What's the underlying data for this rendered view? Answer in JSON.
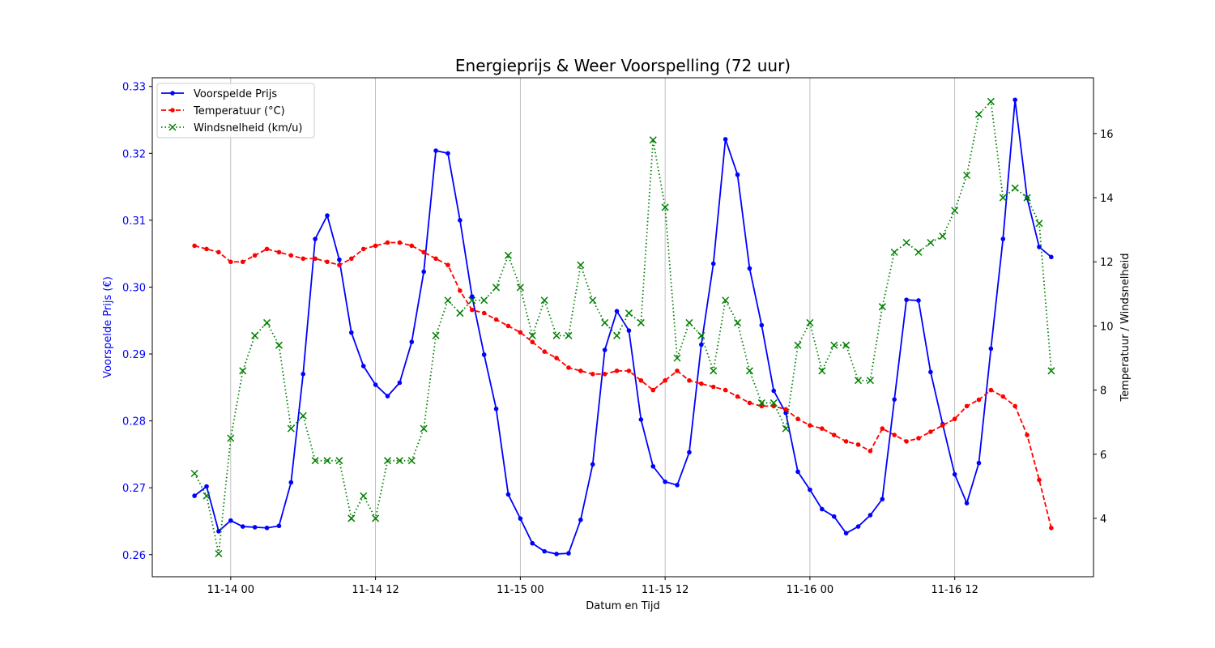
{
  "chart_data": {
    "type": "line",
    "title": "Energieprijs & Weer Voorspelling (72 uur)",
    "xlabel": "Datum en Tijd",
    "ylabel_left": "Voorspelde Prijs (€)",
    "ylabel_right": "Temperatuur / Windsnelheid",
    "x_unit": "hours relative to 11-14 00:00",
    "x": [
      -3,
      -2,
      -1,
      0,
      1,
      2,
      3,
      4,
      5,
      6,
      7,
      8,
      9,
      10,
      11,
      12,
      13,
      14,
      15,
      16,
      17,
      18,
      19,
      20,
      21,
      22,
      23,
      24,
      25,
      26,
      27,
      28,
      29,
      30,
      31,
      32,
      33,
      34,
      35,
      36,
      37,
      38,
      39,
      40,
      41,
      42,
      43,
      44,
      45,
      46,
      47,
      48,
      49,
      50,
      51,
      52,
      53,
      54,
      55,
      56,
      57,
      58,
      59,
      60,
      61,
      62,
      63,
      64,
      65,
      66,
      67,
      68
    ],
    "xlim": [
      -6.5,
      71.5
    ],
    "x_ticks": [
      {
        "value": 0,
        "label": "11-14 00"
      },
      {
        "value": 12,
        "label": "11-14 12"
      },
      {
        "value": 24,
        "label": "11-15 00"
      },
      {
        "value": 36,
        "label": "11-15 12"
      },
      {
        "value": 48,
        "label": "11-16 00"
      },
      {
        "value": 60,
        "label": "11-16 12"
      }
    ],
    "ylim_left": [
      0.2567,
      0.3313
    ],
    "y_ticks_left": [
      {
        "value": 0.26,
        "label": "0.26"
      },
      {
        "value": 0.27,
        "label": "0.27"
      },
      {
        "value": 0.28,
        "label": "0.28"
      },
      {
        "value": 0.29,
        "label": "0.29"
      },
      {
        "value": 0.3,
        "label": "0.30"
      },
      {
        "value": 0.31,
        "label": "0.31"
      },
      {
        "value": 0.32,
        "label": "0.32"
      },
      {
        "value": 0.33,
        "label": "0.33"
      }
    ],
    "ylim_right": [
      2.18,
      17.74
    ],
    "y_ticks_right": [
      {
        "value": 4,
        "label": "4"
      },
      {
        "value": 6,
        "label": "6"
      },
      {
        "value": 8,
        "label": "8"
      },
      {
        "value": 10,
        "label": "10"
      },
      {
        "value": 12,
        "label": "12"
      },
      {
        "value": 14,
        "label": "14"
      },
      {
        "value": 16,
        "label": "16"
      }
    ],
    "grid": "x-only",
    "legend_position": "top-left",
    "series": [
      {
        "name": "Voorspelde Prijs",
        "axis": "left",
        "color": "#0000ff",
        "style": "solid",
        "marker": "dot",
        "values": [
          0.2688,
          0.2702,
          0.2635,
          0.2651,
          0.2642,
          0.2641,
          0.264,
          0.2643,
          0.2708,
          0.287,
          0.3072,
          0.3107,
          0.3041,
          0.2932,
          0.2882,
          0.2854,
          0.2837,
          0.2857,
          0.2918,
          0.3023,
          0.3204,
          0.32,
          0.31,
          0.2986,
          0.2899,
          0.2818,
          0.269,
          0.2654,
          0.2617,
          0.2605,
          0.2601,
          0.2602,
          0.2652,
          0.2735,
          0.2906,
          0.2964,
          0.2935,
          0.2802,
          0.2732,
          0.2709,
          0.2704,
          0.2753,
          0.2914,
          0.3035,
          0.3221,
          0.3168,
          0.3028,
          0.2943,
          0.2845,
          0.2812,
          0.2724,
          0.2697,
          0.2668,
          0.2657,
          0.2632,
          0.2642,
          0.2659,
          0.2683,
          0.2832,
          0.2981,
          0.298,
          0.2873,
          0.2795,
          0.272,
          0.2677,
          0.2737,
          0.2908,
          0.3072,
          0.328,
          0.3133,
          0.306,
          0.3045
        ]
      },
      {
        "name": "Temperatuur (°C)",
        "axis": "right",
        "color": "#ff0000",
        "style": "dashed",
        "marker": "dot",
        "values": [
          12.5,
          12.4,
          12.3,
          12.0,
          12.0,
          12.2,
          12.4,
          12.3,
          12.2,
          12.1,
          12.1,
          12.0,
          11.9,
          12.1,
          12.4,
          12.5,
          12.6,
          12.6,
          12.5,
          12.3,
          12.1,
          11.9,
          11.1,
          10.5,
          10.4,
          10.2,
          10.0,
          9.8,
          9.5,
          9.2,
          9.0,
          8.7,
          8.6,
          8.5,
          8.5,
          8.6,
          8.6,
          8.3,
          8.0,
          8.3,
          8.6,
          8.3,
          8.2,
          8.1,
          8.0,
          7.8,
          7.6,
          7.5,
          7.5,
          7.4,
          7.1,
          6.9,
          6.8,
          6.6,
          6.4,
          6.3,
          6.1,
          6.8,
          6.6,
          6.4,
          6.5,
          6.7,
          6.9,
          7.1,
          7.5,
          7.7,
          8.0,
          7.8,
          7.5,
          6.6,
          5.2,
          3.7
        ]
      },
      {
        "name": "Windsnelheid (km/u)",
        "axis": "right",
        "color": "#008000",
        "style": "dotted",
        "marker": "x",
        "values": [
          5.4,
          4.7,
          2.9,
          6.5,
          8.6,
          9.7,
          10.1,
          9.4,
          6.8,
          7.2,
          5.8,
          5.8,
          5.8,
          4.0,
          4.7,
          4.0,
          5.8,
          5.8,
          5.8,
          6.8,
          9.7,
          10.8,
          10.4,
          10.8,
          10.8,
          11.2,
          12.2,
          11.2,
          9.7,
          10.8,
          9.7,
          9.7,
          11.9,
          10.8,
          10.1,
          9.7,
          10.4,
          10.1,
          15.8,
          13.7,
          9.0,
          10.1,
          9.7,
          8.6,
          10.8,
          10.1,
          8.6,
          7.6,
          7.6,
          6.8,
          9.4,
          10.1,
          8.6,
          9.4,
          9.4,
          8.3,
          8.3,
          10.6,
          12.3,
          12.6,
          12.3,
          12.6,
          12.8,
          13.6,
          14.7,
          16.6,
          17.0,
          14.0,
          14.3,
          14.0,
          13.2,
          8.6
        ]
      }
    ]
  }
}
